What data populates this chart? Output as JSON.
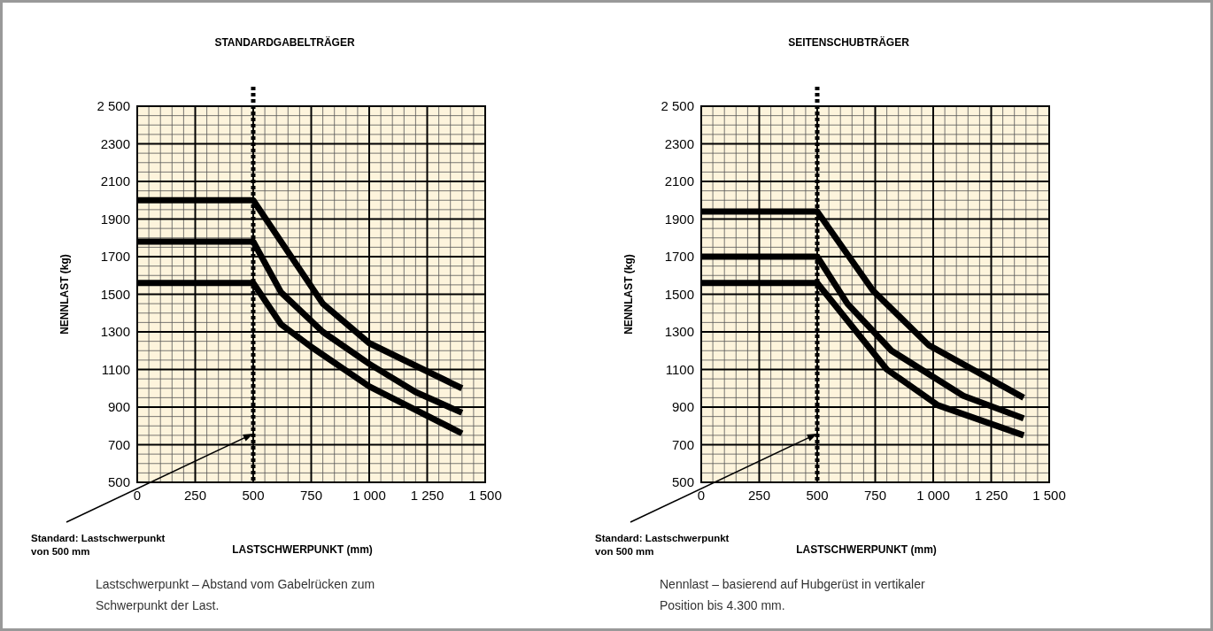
{
  "chart_data": [
    {
      "type": "line",
      "title": "STANDARDGABELTRÄGER",
      "xlabel": "LASTSCHWERPUNKT (mm)",
      "ylabel": "NENNLAST (kg)",
      "xlim": [
        0,
        1500
      ],
      "ylim": [
        500,
        2500
      ],
      "xticks": [
        0,
        250,
        500,
        750,
        {
          "value": 1000,
          "label": "1 000"
        },
        {
          "value": 1250,
          "label": "1 250"
        },
        {
          "value": 1500,
          "label": "1 500"
        }
      ],
      "yticks": [
        500,
        700,
        900,
        1100,
        1300,
        1500,
        1700,
        1900,
        2100,
        2300,
        {
          "value": 2500,
          "label": "2 500"
        }
      ],
      "grid": true,
      "marker": "none",
      "line_style": "solid",
      "series": [
        {
          "color": "#000000",
          "x": [
            0,
            500,
            800,
            1000,
            1400
          ],
          "values": [
            2000,
            2000,
            1450,
            1240,
            1000
          ]
        },
        {
          "color": "#000000",
          "x": [
            0,
            500,
            620,
            800,
            1000,
            1200,
            1400
          ],
          "values": [
            1780,
            1780,
            1510,
            1300,
            1130,
            980,
            870
          ]
        },
        {
          "color": "#000000",
          "x": [
            0,
            500,
            620,
            750,
            1000,
            1400
          ],
          "values": [
            1560,
            1560,
            1340,
            1220,
            1010,
            760
          ]
        }
      ],
      "ref_lines": [
        {
          "axis": "x",
          "value": 500,
          "line_style": "dotted",
          "color": "#000000",
          "label": "Standard: Lastschwerpunkt von 500 mm"
        }
      ],
      "annotations": [
        "Lastschwerpunkt – Abstand vom Gabelrücken zum Schwerpunkt der Last."
      ]
    },
    {
      "type": "line",
      "title": "SEITENSCHUBTRÄGER",
      "xlabel": "LASTSCHWERPUNKT (mm)",
      "ylabel": "NENNLAST (kg)",
      "xlim": [
        0,
        1500
      ],
      "ylim": [
        500,
        2500
      ],
      "xticks": [
        0,
        250,
        500,
        750,
        {
          "value": 1000,
          "label": "1 000"
        },
        {
          "value": 1250,
          "label": "1 250"
        },
        {
          "value": 1500,
          "label": "1 500"
        }
      ],
      "yticks": [
        500,
        700,
        900,
        1100,
        1300,
        1500,
        1700,
        1900,
        2100,
        2300,
        {
          "value": 2500,
          "label": "2 500"
        }
      ],
      "grid": true,
      "marker": "none",
      "line_style": "solid",
      "series": [
        {
          "color": "#000000",
          "x": [
            0,
            500,
            740,
            980,
            1390
          ],
          "values": [
            1940,
            1940,
            1520,
            1230,
            950
          ]
        },
        {
          "color": "#000000",
          "x": [
            0,
            500,
            630,
            820,
            1130,
            1390
          ],
          "values": [
            1700,
            1700,
            1450,
            1200,
            960,
            840
          ]
        },
        {
          "color": "#000000",
          "x": [
            0,
            500,
            800,
            1020,
            1390
          ],
          "values": [
            1560,
            1560,
            1100,
            910,
            750
          ]
        }
      ],
      "ref_lines": [
        {
          "axis": "x",
          "value": 500,
          "line_style": "dotted",
          "color": "#000000",
          "label": "Standard: Lastschwerpunkt von 500 mm"
        }
      ],
      "annotations": [
        "Nennlast – basierend auf Hubgerüst in vertikaler Position bis 4.300 mm."
      ]
    }
  ]
}
